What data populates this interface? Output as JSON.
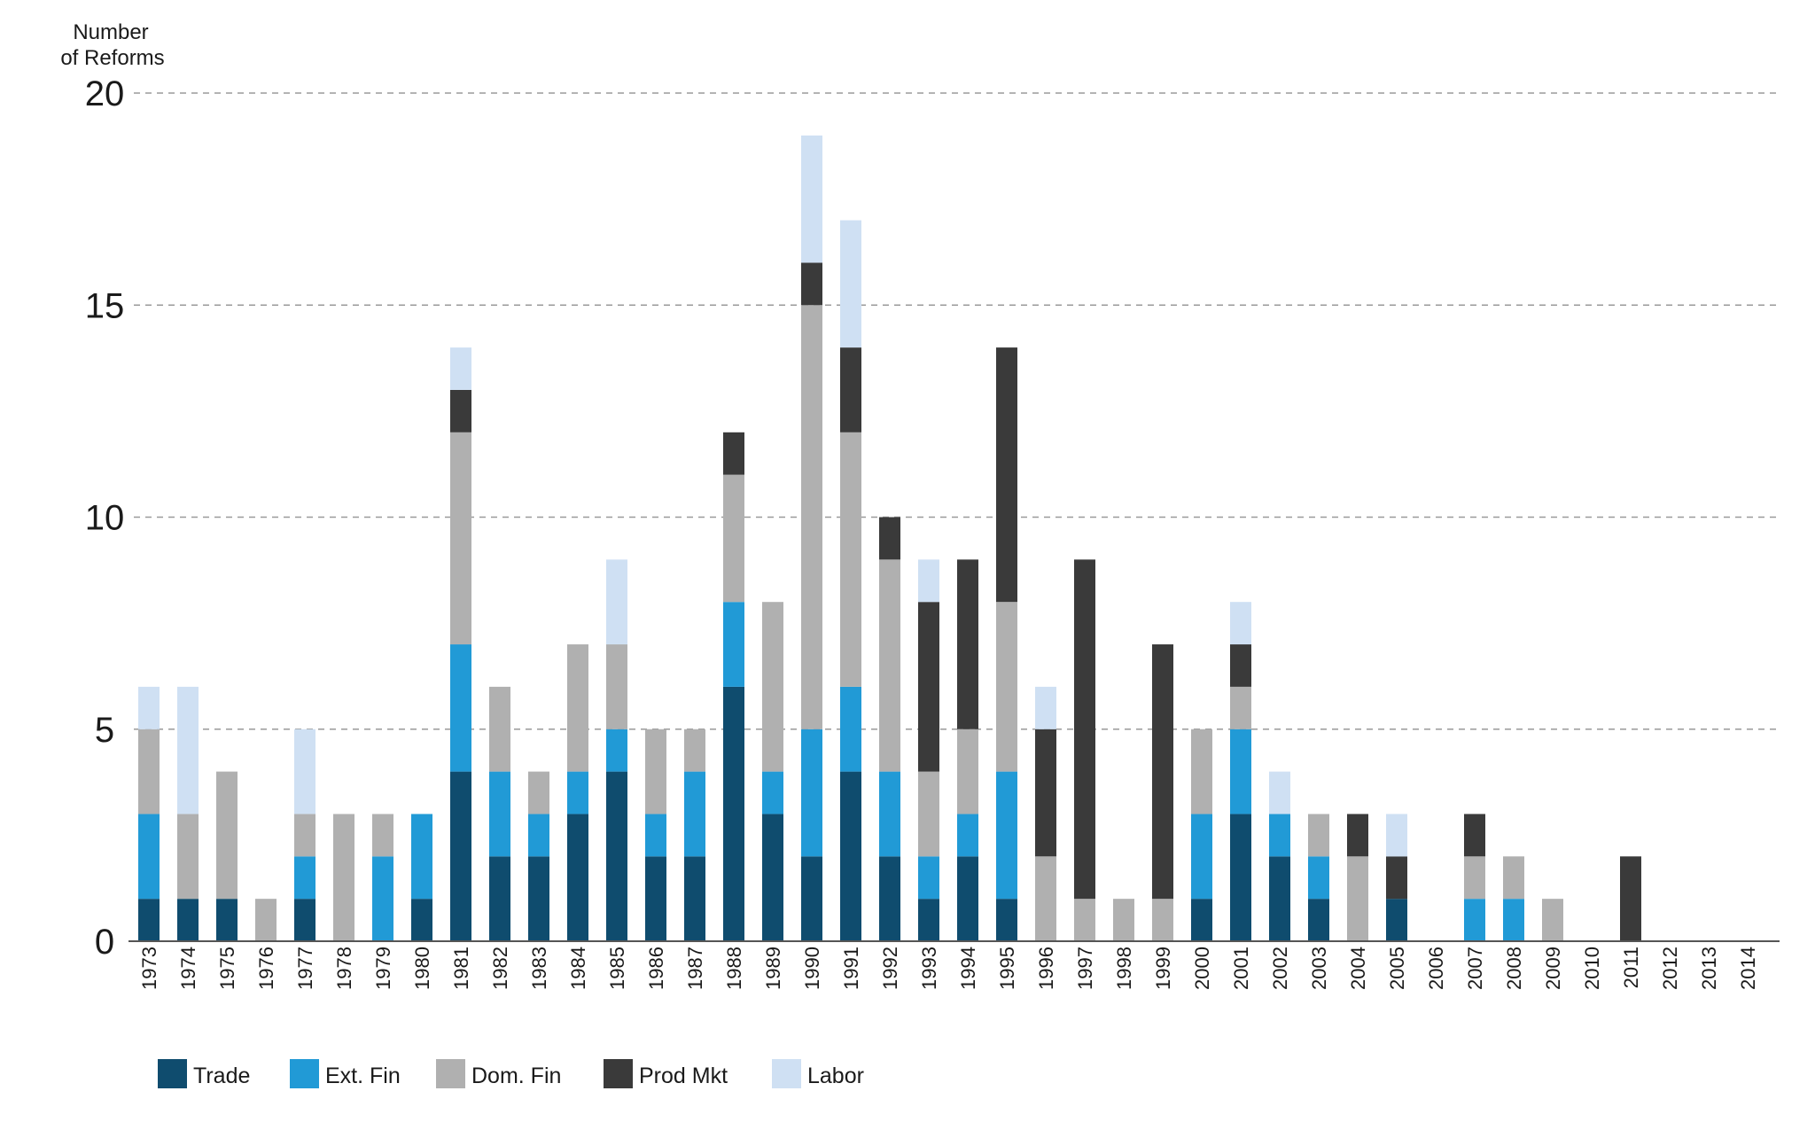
{
  "chart_data": {
    "type": "bar",
    "stacked": true,
    "title": "",
    "ylabel": "Number of Reforms",
    "ylabel_lines": [
      "Number",
      "of Reforms"
    ],
    "xlabel": "",
    "ylim": [
      0,
      20
    ],
    "yticks": [
      0,
      5,
      10,
      15,
      20
    ],
    "grid": true,
    "legend_position": "bottom-left",
    "categories": [
      "1973",
      "1974",
      "1975",
      "1976",
      "1977",
      "1978",
      "1979",
      "1980",
      "1981",
      "1982",
      "1983",
      "1984",
      "1985",
      "1986",
      "1987",
      "1988",
      "1989",
      "1990",
      "1991",
      "1992",
      "1993",
      "1994",
      "1995",
      "1996",
      "1997",
      "1998",
      "1999",
      "2000",
      "2001",
      "2002",
      "2003",
      "2004",
      "2005",
      "2006",
      "2007",
      "2008",
      "2009",
      "2010",
      "2011",
      "2012",
      "2013",
      "2014"
    ],
    "series": [
      {
        "name": "Trade",
        "color": "#0f4c6e",
        "values": [
          1,
          1,
          1,
          0,
          1,
          0,
          0,
          1,
          4,
          2,
          2,
          3,
          4,
          2,
          2,
          6,
          3,
          2,
          4,
          2,
          1,
          2,
          1,
          0,
          0,
          0,
          0,
          1,
          3,
          2,
          1,
          0,
          1,
          0,
          0,
          0,
          0,
          0,
          0,
          0,
          0,
          0
        ]
      },
      {
        "name": "Ext. Fin",
        "color": "#219ad6",
        "values": [
          2,
          0,
          0,
          0,
          1,
          0,
          2,
          2,
          3,
          2,
          1,
          1,
          1,
          1,
          2,
          2,
          1,
          3,
          2,
          2,
          1,
          1,
          3,
          0,
          0,
          0,
          0,
          2,
          2,
          1,
          1,
          0,
          0,
          0,
          1,
          1,
          0,
          0,
          0,
          0,
          0,
          0
        ]
      },
      {
        "name": "Dom. Fin",
        "color": "#b0b0b0",
        "values": [
          2,
          2,
          3,
          1,
          1,
          3,
          1,
          0,
          5,
          2,
          1,
          3,
          2,
          2,
          1,
          3,
          4,
          10,
          6,
          5,
          2,
          2,
          4,
          2,
          1,
          1,
          1,
          2,
          1,
          0,
          1,
          2,
          0,
          0,
          1,
          1,
          1,
          0,
          0,
          0,
          0,
          0
        ]
      },
      {
        "name": "Prod Mkt",
        "color": "#3a3a3a",
        "values": [
          0,
          0,
          0,
          0,
          0,
          0,
          0,
          0,
          1,
          0,
          0,
          0,
          0,
          0,
          0,
          1,
          0,
          1,
          2,
          1,
          4,
          4,
          6,
          3,
          8,
          0,
          6,
          0,
          1,
          0,
          0,
          1,
          1,
          0,
          1,
          0,
          0,
          0,
          2,
          0,
          0,
          0
        ]
      },
      {
        "name": "Labor",
        "color": "#cfe0f3",
        "values": [
          1,
          3,
          0,
          0,
          2,
          0,
          0,
          0,
          1,
          0,
          0,
          0,
          2,
          0,
          0,
          0,
          0,
          3,
          3,
          0,
          1,
          0,
          0,
          1,
          0,
          0,
          0,
          0,
          1,
          1,
          0,
          0,
          1,
          0,
          0,
          0,
          0,
          0,
          0,
          0,
          0,
          0
        ]
      }
    ]
  }
}
